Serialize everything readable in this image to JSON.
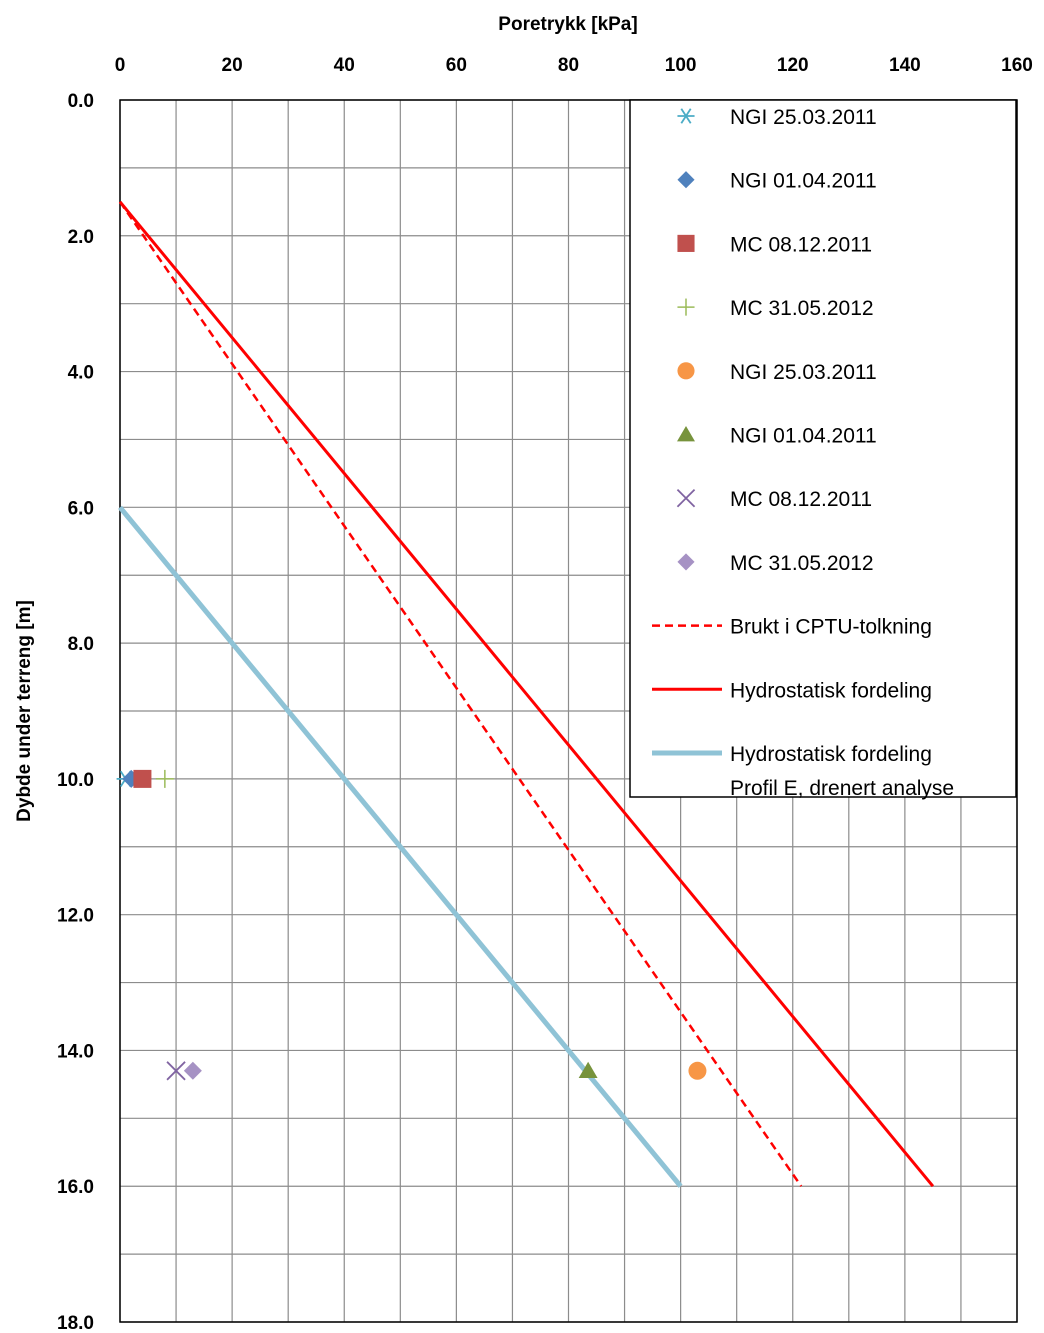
{
  "chart_data": {
    "type": "scatter",
    "xlabel": "Poretrykk [kPa]",
    "ylabel": "Dybde under terreng [m]",
    "xlim": [
      0,
      160
    ],
    "ylim": [
      0,
      18
    ],
    "y_inverted": true,
    "x_axis_position": "top",
    "grid": true,
    "x_ticks": [
      "0",
      "20",
      "40",
      "60",
      "80",
      "100",
      "120",
      "140",
      "160"
    ],
    "y_ticks": [
      "0.0",
      "2.0",
      "4.0",
      "6.0",
      "8.0",
      "10.0",
      "12.0",
      "14.0",
      "16.0",
      "18.0"
    ],
    "legend_position": "top-right",
    "series": [
      {
        "name": "NGI 25.03.2011",
        "kind": "marker",
        "marker": "asterisk",
        "color": "#4bacc6",
        "points": [
          [
            1,
            10.0
          ]
        ]
      },
      {
        "name": "NGI 01.04.2011",
        "kind": "marker",
        "marker": "diamond",
        "color": "#4f81bd",
        "points": [
          [
            2,
            10.0
          ]
        ]
      },
      {
        "name": "MC 08.12.2011",
        "kind": "marker",
        "marker": "square",
        "color": "#c0504d",
        "points": [
          [
            4,
            10.0
          ]
        ]
      },
      {
        "name": "MC 31.05.2012",
        "kind": "marker",
        "marker": "plus",
        "color": "#9bbb59",
        "points": [
          [
            8,
            10.0
          ]
        ]
      },
      {
        "name": "NGI 25.03.2011",
        "kind": "marker",
        "marker": "circle",
        "color": "#f79646",
        "points": [
          [
            103,
            14.3
          ]
        ]
      },
      {
        "name": "NGI 01.04.2011",
        "kind": "marker",
        "marker": "triangle",
        "color": "#77933c",
        "points": [
          [
            83.5,
            14.3
          ]
        ]
      },
      {
        "name": "MC 08.12.2011",
        "kind": "marker",
        "marker": "cross",
        "color": "#8064a2",
        "points": [
          [
            10,
            14.3
          ]
        ]
      },
      {
        "name": "MC 31.05.2012",
        "kind": "marker",
        "marker": "diamond",
        "color": "#a692c4",
        "points": [
          [
            13,
            14.3
          ]
        ]
      },
      {
        "name": "Brukt i CPTU-tolkning",
        "kind": "line",
        "style": "dashed",
        "color": "#ff0000",
        "points": [
          [
            0,
            1.5
          ],
          [
            121.5,
            16.0
          ]
        ]
      },
      {
        "name": "Hydrostatisk fordeling",
        "kind": "line",
        "style": "solid",
        "color": "#ff0000",
        "points": [
          [
            0,
            1.5
          ],
          [
            145,
            16.0
          ]
        ]
      },
      {
        "name": "Hydrostatisk fordeling",
        "name_line2": "Profil E, drenert analyse",
        "kind": "line",
        "style": "solid-thick",
        "color": "#8fc3d6",
        "points": [
          [
            0,
            6.0
          ],
          [
            100,
            16.0
          ]
        ]
      }
    ]
  }
}
